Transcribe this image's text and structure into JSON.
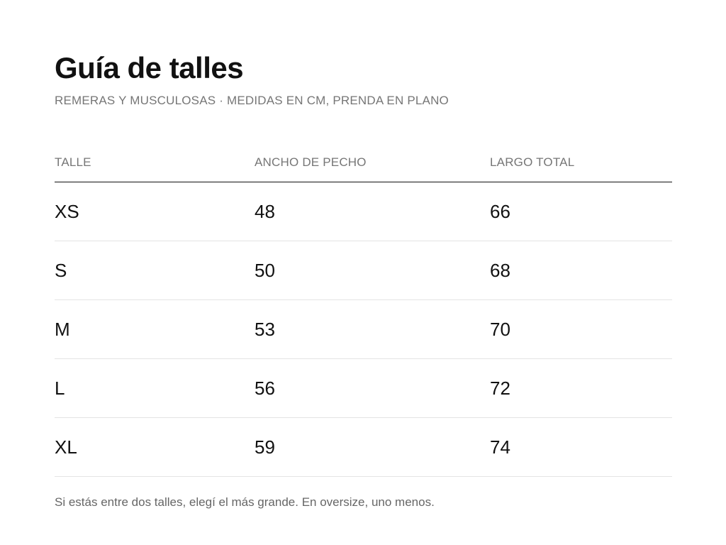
{
  "title": "Guía de talles",
  "subtitle": "REMERAS Y MUSCULOSAS · MEDIDAS EN CM, PRENDA EN PLANO",
  "table": {
    "headers": [
      "TALLE",
      "ANCHO DE PECHO",
      "LARGO TOTAL"
    ],
    "rows": [
      [
        "XS",
        "48",
        "66"
      ],
      [
        "S",
        "50",
        "68"
      ],
      [
        "M",
        "53",
        "70"
      ],
      [
        "L",
        "56",
        "72"
      ],
      [
        "XL",
        "59",
        "74"
      ]
    ]
  },
  "note": "Si estás entre dos talles, elegí el más grande. En oversize, uno menos."
}
